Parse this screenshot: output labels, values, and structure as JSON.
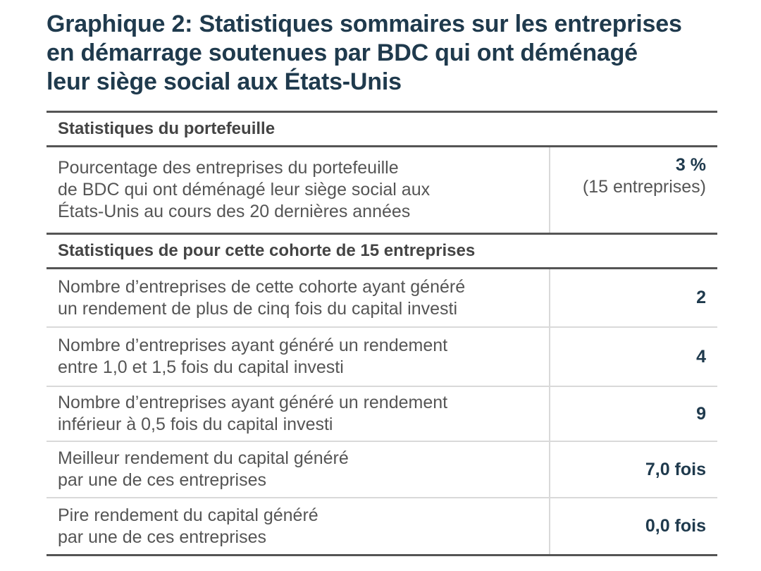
{
  "title_lines": [
    "Graphique 2: Statistiques sommaires sur les entreprises",
    "en démarrage soutenues par BDC qui ont déménagé",
    "leur siège social aux États-Unis"
  ],
  "sections": [
    {
      "header": "Statistiques du portefeuille",
      "rows": [
        {
          "label_lines": [
            "Pourcentage des entreprises du portefeuille",
            "de BDC qui ont déménagé leur siège social aux",
            "États-Unis au cours des 20 dernières années"
          ],
          "value": "3 %",
          "value_sub": "(15 entreprises)"
        }
      ]
    },
    {
      "header": "Statistiques de pour cette cohorte de 15 entreprises",
      "rows": [
        {
          "label_lines": [
            "Nombre d’entreprises de cette cohorte ayant généré",
            "un rendement de plus de cinq fois du capital investi"
          ],
          "value": "2"
        },
        {
          "label_lines": [
            "Nombre d’entreprises ayant généré un rendement",
            "entre 1,0 et 1,5 fois du capital investi"
          ],
          "value": "4"
        },
        {
          "label_lines": [
            "Nombre d’entreprises ayant généré un rendement",
            "inférieur à 0,5 fois du capital investi"
          ],
          "value": "9"
        },
        {
          "label_lines": [
            "Meilleur rendement du capital généré",
            "par une de ces entreprises"
          ],
          "value": "7,0 fois"
        },
        {
          "label_lines": [
            "Pire rendement du capital généré",
            "par une de ces entreprises"
          ],
          "value": "0,0 fois"
        }
      ]
    }
  ]
}
